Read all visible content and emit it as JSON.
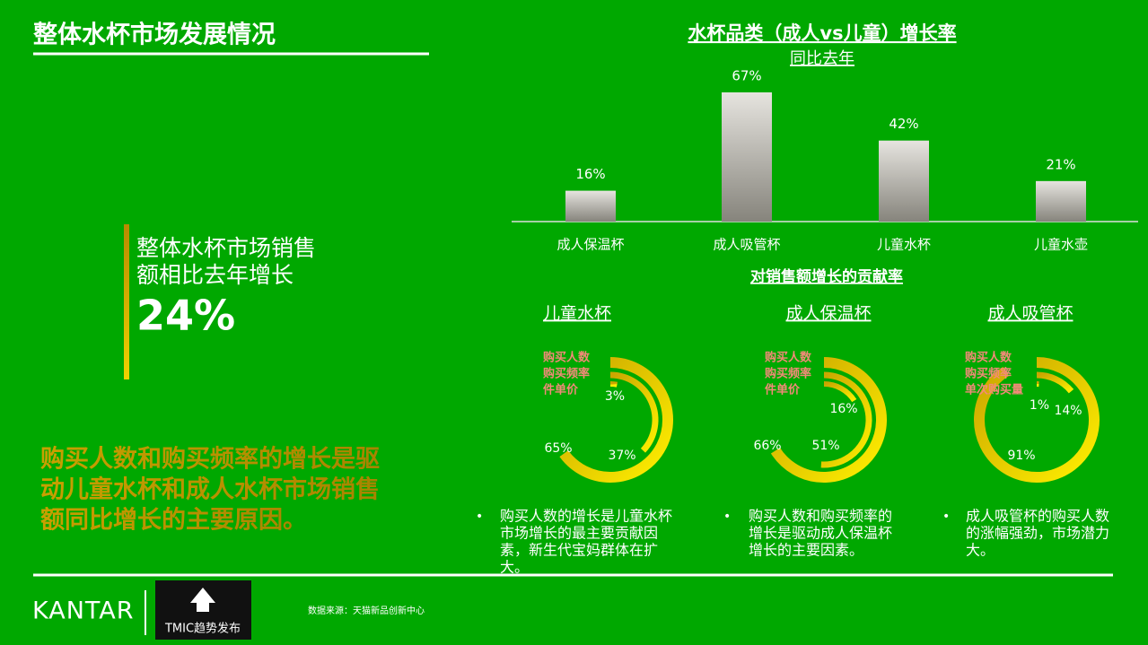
{
  "header": {
    "title": "整体水杯市场发展情况"
  },
  "summary": {
    "lines": [
      "整体水杯市场销售",
      "额相比去年增长"
    ],
    "figure": "24%"
  },
  "conclusion": {
    "lines": [
      "购买人数和购买频率的增长是驱",
      "动儿童水杯和成人水杯市场销售",
      "额同比增长的主要原因。"
    ]
  },
  "contribution_title": "对销售额增长的贡献率",
  "chart_data": [
    {
      "type": "bar",
      "title": "水杯品类（成人vs儿童）增长率",
      "subtitle": "同比去年",
      "categories": [
        "成人保温杯",
        "成人吸管杯",
        "儿童水杯",
        "儿童水壶"
      ],
      "values": [
        16,
        67,
        42,
        21
      ],
      "value_labels": [
        "16%",
        "67%",
        "42%",
        "21%"
      ]
    },
    {
      "type": "donut",
      "title": "儿童水杯",
      "categories": [
        "购买人数",
        "购买频率",
        "件单价"
      ],
      "values": [
        65,
        37,
        3
      ],
      "value_labels": [
        "65%",
        "37%",
        "3%"
      ],
      "note": [
        "购买人数的增长是儿童水杯",
        "市场增长的最主要贡献因",
        "素，新生代宝妈群体在扩",
        "大。"
      ]
    },
    {
      "type": "donut",
      "title": "成人保温杯",
      "categories": [
        "购买人数",
        "购买频率",
        "件单价"
      ],
      "values": [
        66,
        51,
        16
      ],
      "value_labels": [
        "66%",
        "51%",
        "16%"
      ],
      "note": [
        "购买人数和购买频率的",
        "增长是驱动成人保温杯",
        "增长的主要因素。"
      ]
    },
    {
      "type": "donut",
      "title": "成人吸管杯",
      "categories": [
        "购买人数",
        "购买频率",
        "单次购买量"
      ],
      "values": [
        91,
        14,
        1
      ],
      "value_labels": [
        "91%",
        "14%",
        "1%"
      ],
      "note": [
        "成人吸管杯的购买人数",
        "的涨幅强劲，市场潜力",
        "大。"
      ]
    }
  ],
  "footer": {
    "brand": "KANTAR",
    "partner": "TMIC趋势发布",
    "source": "数据来源：天猫新品创新中心"
  }
}
